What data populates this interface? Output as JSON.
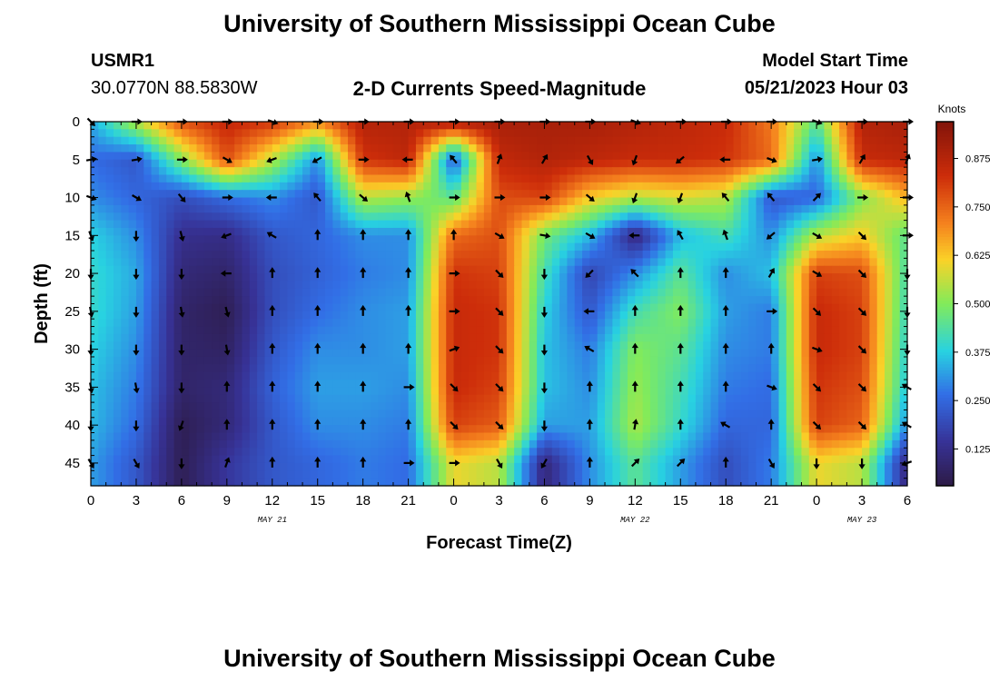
{
  "header": {
    "title": "University of Southern Mississippi Ocean Cube",
    "station_id": "USMR1",
    "station_coords": "30.0770N  88.5830W",
    "subtitle": "2-D Currents Speed-Magnitude",
    "model_start_label": "Model Start Time",
    "model_start_value": "05/21/2023 Hour 03"
  },
  "footer": {
    "repeat_title": "University of Southern Mississippi Ocean Cube"
  },
  "chart_data": {
    "type": "heatmap",
    "title": "2-D Currents Speed-Magnitude",
    "xlabel": "Forecast Time(Z)",
    "ylabel": "Depth (ft)",
    "colorbar_label": "Knots",
    "colorbar_ticks": [
      "0.875",
      "0.750",
      "0.625",
      "0.500",
      "0.375",
      "0.250",
      "0.125"
    ],
    "colorbar_tick_values": [
      0.875,
      0.75,
      0.625,
      0.5,
      0.375,
      0.25,
      0.125
    ],
    "color_range": [
      0.03,
      0.97
    ],
    "x_tick_labels": [
      "0",
      "3",
      "6",
      "9",
      "12",
      "15",
      "18",
      "21",
      "0",
      "3",
      "6",
      "9",
      "12",
      "15",
      "18",
      "21",
      "0",
      "3",
      "6"
    ],
    "x_hours": [
      0,
      3,
      6,
      9,
      12,
      15,
      18,
      21,
      24,
      27,
      30,
      33,
      36,
      39,
      42,
      45,
      48,
      51,
      54
    ],
    "date_labels": [
      {
        "text": "MAY 21",
        "hour": 12
      },
      {
        "text": "MAY 22",
        "hour": 36
      },
      {
        "text": "MAY 23",
        "hour": 51
      }
    ],
    "y_tick_labels": [
      "0",
      "5",
      "10",
      "15",
      "20",
      "25",
      "30",
      "35",
      "40",
      "45"
    ],
    "depths": [
      0,
      5,
      10,
      15,
      20,
      25,
      30,
      35,
      40,
      45
    ],
    "y_range": [
      0,
      48
    ],
    "x_range": [
      0,
      54
    ],
    "grid": false,
    "colormap": "rainbow (dark blue low to dark red high)",
    "speed_knots": [
      [
        0.33,
        0.55,
        0.78,
        0.85,
        0.82,
        0.7,
        0.88,
        0.88,
        0.9,
        0.9,
        0.9,
        0.9,
        0.88,
        0.86,
        0.84,
        0.72,
        0.45,
        0.88,
        0.9
      ],
      [
        0.26,
        0.22,
        0.5,
        0.78,
        0.55,
        0.3,
        0.82,
        0.86,
        0.22,
        0.85,
        0.88,
        0.86,
        0.84,
        0.84,
        0.82,
        0.74,
        0.3,
        0.84,
        0.86
      ],
      [
        0.3,
        0.25,
        0.2,
        0.26,
        0.3,
        0.22,
        0.55,
        0.52,
        0.45,
        0.78,
        0.8,
        0.62,
        0.55,
        0.58,
        0.55,
        0.22,
        0.25,
        0.5,
        0.65
      ],
      [
        0.38,
        0.3,
        0.13,
        0.12,
        0.22,
        0.25,
        0.3,
        0.3,
        0.74,
        0.78,
        0.48,
        0.35,
        0.1,
        0.35,
        0.42,
        0.3,
        0.55,
        0.62,
        0.45
      ],
      [
        0.4,
        0.33,
        0.1,
        0.08,
        0.2,
        0.24,
        0.28,
        0.3,
        0.82,
        0.8,
        0.42,
        0.18,
        0.3,
        0.45,
        0.3,
        0.36,
        0.8,
        0.78,
        0.42
      ],
      [
        0.4,
        0.32,
        0.08,
        0.05,
        0.2,
        0.26,
        0.3,
        0.32,
        0.84,
        0.82,
        0.38,
        0.22,
        0.42,
        0.5,
        0.32,
        0.28,
        0.84,
        0.8,
        0.4
      ],
      [
        0.38,
        0.3,
        0.08,
        0.07,
        0.22,
        0.3,
        0.3,
        0.32,
        0.84,
        0.82,
        0.36,
        0.28,
        0.5,
        0.45,
        0.3,
        0.28,
        0.84,
        0.8,
        0.38
      ],
      [
        0.36,
        0.28,
        0.08,
        0.1,
        0.24,
        0.32,
        0.32,
        0.3,
        0.84,
        0.8,
        0.36,
        0.3,
        0.52,
        0.42,
        0.28,
        0.26,
        0.82,
        0.78,
        0.36
      ],
      [
        0.35,
        0.26,
        0.05,
        0.1,
        0.22,
        0.3,
        0.3,
        0.28,
        0.8,
        0.76,
        0.32,
        0.32,
        0.54,
        0.4,
        0.25,
        0.25,
        0.8,
        0.75,
        0.3
      ],
      [
        0.32,
        0.22,
        0.05,
        0.15,
        0.22,
        0.25,
        0.28,
        0.26,
        0.6,
        0.55,
        0.1,
        0.3,
        0.45,
        0.32,
        0.2,
        0.28,
        0.6,
        0.55,
        0.1
      ]
    ],
    "arrow_directions_deg": [
      [
        135,
        90,
        90,
        90,
        110,
        90,
        90,
        90,
        90,
        90,
        90,
        90,
        110,
        90,
        90,
        90,
        110,
        90,
        90
      ],
      [
        80,
        80,
        90,
        120,
        250,
        240,
        90,
        270,
        320,
        20,
        30,
        150,
        200,
        230,
        270,
        110,
        80,
        30,
        20
      ],
      [
        110,
        120,
        140,
        90,
        270,
        320,
        130,
        340,
        90,
        90,
        90,
        130,
        200,
        200,
        320,
        320,
        45,
        90,
        90
      ],
      [
        160,
        180,
        165,
        250,
        300,
        0,
        0,
        0,
        0,
        120,
        100,
        120,
        270,
        330,
        340,
        230,
        120,
        135,
        90
      ],
      [
        180,
        180,
        180,
        270,
        0,
        0,
        0,
        0,
        90,
        135,
        180,
        225,
        315,
        0,
        0,
        30,
        120,
        135,
        180
      ],
      [
        170,
        180,
        170,
        165,
        0,
        0,
        0,
        0,
        90,
        135,
        180,
        270,
        0,
        0,
        0,
        90,
        135,
        135,
        180
      ],
      [
        180,
        180,
        180,
        170,
        0,
        0,
        0,
        0,
        70,
        135,
        180,
        300,
        0,
        0,
        0,
        0,
        110,
        135,
        180
      ],
      [
        170,
        170,
        180,
        0,
        0,
        0,
        0,
        90,
        135,
        135,
        180,
        0,
        0,
        0,
        0,
        110,
        135,
        135,
        300
      ],
      [
        180,
        180,
        200,
        0,
        0,
        0,
        0,
        0,
        135,
        135,
        180,
        0,
        10,
        0,
        300,
        0,
        135,
        135,
        300
      ],
      [
        150,
        150,
        180,
        20,
        0,
        0,
        0,
        90,
        90,
        150,
        210,
        0,
        45,
        45,
        0,
        150,
        180,
        180,
        250
      ]
    ]
  },
  "colors": {
    "background": "#ffffff",
    "text": "#000000",
    "arrow": "#000000"
  }
}
